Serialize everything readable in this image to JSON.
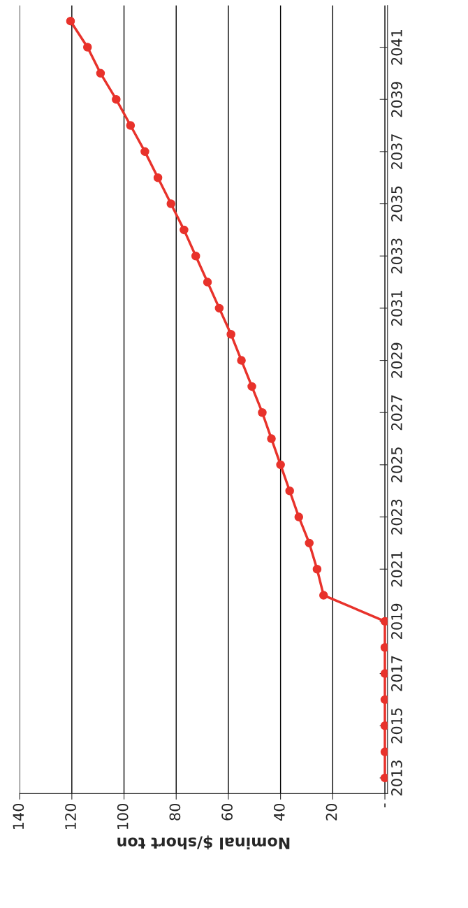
{
  "chart_data": {
    "type": "line",
    "xlabel": "Nominal $/short ton",
    "series": [
      {
        "color": "#e8322b",
        "x": [
          0,
          0,
          0,
          0,
          0,
          0,
          0,
          23.5,
          26,
          29,
          33,
          36.5,
          40,
          43.5,
          47,
          51,
          55,
          59,
          63.5,
          68,
          72.5,
          77,
          82,
          87,
          92,
          97.5,
          103,
          109,
          114,
          120.5
        ],
        "values": [
          2013,
          2014,
          2015,
          2016,
          2017,
          2018,
          2019,
          2020,
          2021,
          2022,
          2023,
          2024,
          2025,
          2026,
          2027,
          2028,
          2029,
          2030,
          2031,
          2032,
          2033,
          2034,
          2035,
          2036,
          2037,
          2038,
          2039,
          2040,
          2041,
          2042
        ]
      }
    ],
    "ylim": [
      2012.4,
      2042.6
    ],
    "yticks": [
      2013,
      2015,
      2017,
      2019,
      2021,
      2023,
      2025,
      2027,
      2029,
      2031,
      2033,
      2035,
      2037,
      2039,
      2041
    ],
    "xlim": [
      140,
      -1
    ],
    "xticks": [
      140,
      120,
      100,
      80,
      60,
      40,
      20,
      {
        "value": 0,
        "label": "-"
      }
    ],
    "grid": "x",
    "marker": "circle",
    "line_style": "solid"
  }
}
